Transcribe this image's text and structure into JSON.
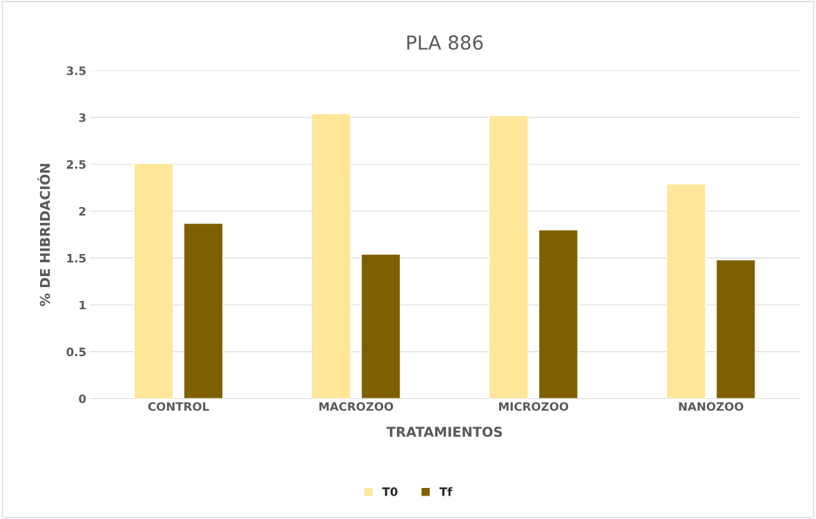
{
  "chart_data": {
    "type": "bar",
    "title": "PLA 886",
    "xlabel": "TRATAMIENTOS",
    "ylabel": "% DE HIBRIDACIÓN",
    "categories": [
      "CONTROL",
      "MACROZOO",
      "MICROZOO",
      "NANOZOO"
    ],
    "series": [
      {
        "name": "T0",
        "color": "#ffe699",
        "values": [
          2.51,
          3.04,
          3.02,
          2.29
        ]
      },
      {
        "name": "Tf",
        "color": "#7f6000",
        "values": [
          1.87,
          1.54,
          1.8,
          1.48
        ]
      }
    ],
    "ylim": [
      0,
      3.5
    ],
    "yticks": [
      0,
      {
        "value": 0.5,
        "label": "0.5"
      },
      1,
      {
        "value": 1.5,
        "label": "1.5"
      },
      2,
      {
        "value": 2.5,
        "label": "2.5"
      },
      3,
      {
        "value": 3.5,
        "label": "3.5"
      }
    ],
    "grid": "y",
    "legend": "bottom"
  }
}
